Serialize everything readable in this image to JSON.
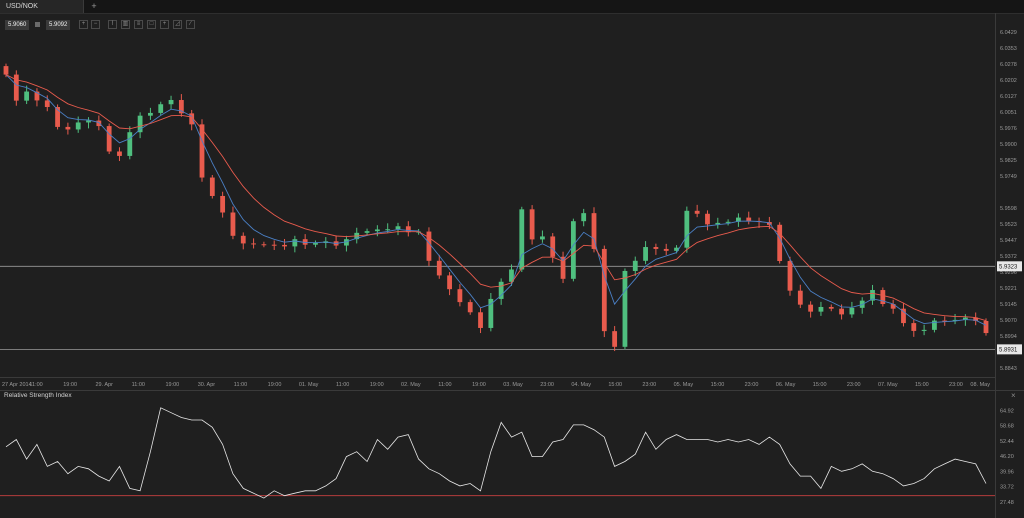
{
  "tab": {
    "label": "USD/NOK",
    "add_label": "+"
  },
  "quote": {
    "bid": "5.9060",
    "ask": "5.9092"
  },
  "toolbar": {
    "icons": [
      "zoom-in-icon",
      "zoom-out-icon",
      "period-icon",
      "chart-type-icon",
      "indicators-icon",
      "template-icon",
      "crosshair-icon",
      "analysis-icon",
      "drawing-icon"
    ]
  },
  "colors": {
    "up": "#4fbf7f",
    "down": "#e85b4d",
    "ma_fast": "#4a7fc4",
    "ma_slow": "#e85b4d",
    "rsi_line": "#e8e8e8",
    "rsi_level": "#b43c3c",
    "hline": "#9a9a9a"
  },
  "rsi": {
    "title": "Relative Strength Index",
    "close_label": "×"
  },
  "chart_data": [
    {
      "type": "candlestick",
      "title": "USD/NOK",
      "ylim": [
        5.8843,
        6.0429
      ],
      "y_ticks": [
        "6.0429",
        "6.0353",
        "6.0278",
        "6.0202",
        "6.0127",
        "6.0051",
        "5.9976",
        "5.9900",
        "5.9825",
        "5.9749",
        "5.9598",
        "5.9523",
        "5.9447",
        "5.9372",
        "5.9296",
        "5.9221",
        "5.9145",
        "5.9070",
        "5.8994",
        "5.8843"
      ],
      "x_ticks": [
        "27 Apr 2014",
        "11:00",
        "19:00",
        "29. Apr",
        "11:00",
        "19:00",
        "30. Apr",
        "11:00",
        "19:00",
        "01. May",
        "11:00",
        "19:00",
        "02. May",
        "11:00",
        "19:00",
        "03. May",
        "23:00",
        "04. May",
        "15:00",
        "23:00",
        "05. May",
        "15:00",
        "23:00",
        "06. May",
        "15:00",
        "23:00",
        "07. May",
        "15:00",
        "23:00",
        "08. May"
      ],
      "price_lines": [
        5.9323,
        5.8931
      ],
      "price_labels": [
        "5.9323",
        "5.8931"
      ],
      "series": [
        {
          "name": "USD/NOK",
          "close": [
            6.0228,
            6.0105,
            6.0148,
            6.0106,
            6.0075,
            5.9981,
            5.9969,
            6.0002,
            6.0011,
            5.9985,
            5.9865,
            5.9844,
            5.9956,
            6.0034,
            6.0047,
            6.0088,
            6.0108,
            6.0045,
            5.9993,
            5.9742,
            5.9655,
            5.9577,
            5.9467,
            5.9431,
            5.9427,
            5.9425,
            5.9424,
            5.9417,
            5.9451,
            5.9425,
            5.9433,
            5.9441,
            5.9421,
            5.9451,
            5.9481,
            5.9489,
            5.9497,
            5.9498,
            5.9512,
            5.9484,
            5.9487,
            5.9349,
            5.928,
            5.9215,
            5.9154,
            5.9106,
            5.9032,
            5.9169,
            5.925,
            5.9308,
            5.9592,
            5.945,
            5.9464,
            5.9368,
            5.9264,
            5.9536,
            5.9574,
            5.9405,
            5.9017,
            5.8943,
            5.9301,
            5.9349,
            5.9414,
            5.9405,
            5.9396,
            5.9411,
            5.9585,
            5.9571,
            5.9521,
            5.9528,
            5.9533,
            5.9553,
            5.9537,
            5.9532,
            5.9519,
            5.9348,
            5.9208,
            5.9142,
            5.9109,
            5.9131,
            5.9123,
            5.9096,
            5.9127,
            5.9161,
            5.9211,
            5.9145,
            5.9123,
            5.9055,
            5.9018,
            5.9023,
            5.9067,
            5.9066,
            5.907,
            5.9081,
            5.9065,
            5.9008
          ]
        }
      ]
    },
    {
      "type": "line",
      "title": "Relative Strength Index",
      "ylim": [
        22.5,
        70
      ],
      "y_ticks": [
        "64.92",
        "58.68",
        "52.44",
        "46.20",
        "39.96",
        "33.72",
        "27.48"
      ],
      "level": 30,
      "series": [
        {
          "name": "Relative Strength Index",
          "values": [
            50,
            53,
            45,
            51,
            42,
            44,
            39,
            42,
            41,
            38,
            36,
            42,
            33,
            32,
            48,
            66,
            64,
            62,
            61,
            61,
            58,
            51,
            39,
            33,
            31,
            29,
            32,
            30,
            31,
            32,
            32,
            34,
            37,
            46,
            48,
            44,
            53,
            49,
            54,
            55,
            45,
            41,
            39,
            36,
            34,
            35,
            32,
            48,
            60,
            54,
            56,
            46,
            46,
            52,
            53,
            59,
            59,
            57,
            54,
            42,
            44,
            47,
            56,
            49,
            53,
            55,
            53,
            53,
            53,
            52,
            53,
            52,
            53,
            51,
            54,
            51,
            43,
            38,
            38,
            33,
            42,
            40,
            41,
            43,
            40,
            39,
            37,
            34,
            35,
            37,
            41,
            43,
            45,
            44,
            43,
            35
          ]
        }
      ]
    }
  ]
}
